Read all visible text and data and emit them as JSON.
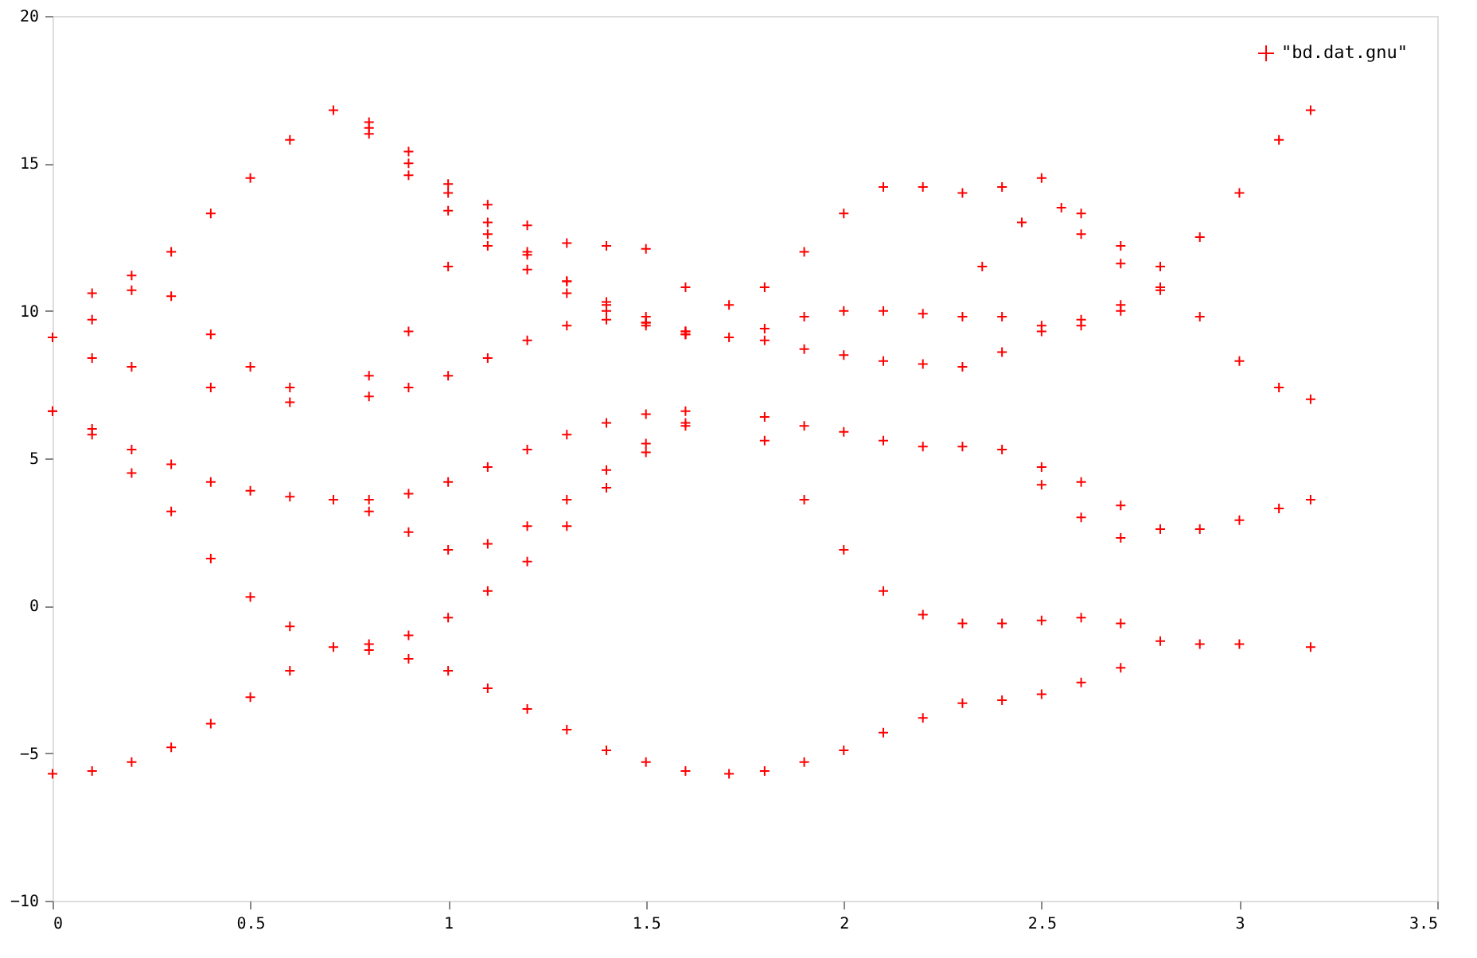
{
  "chart_data": {
    "type": "scatter",
    "xlim": [
      0,
      3.5
    ],
    "ylim": [
      -10,
      20
    ],
    "xticks": [
      0,
      0.5,
      1,
      1.5,
      2,
      2.5,
      3,
      3.5
    ],
    "yticks": [
      -10,
      -5,
      0,
      5,
      10,
      15,
      20
    ],
    "grid": false,
    "legend": "top right",
    "marker": "cross",
    "series": [
      {
        "name": "\"bd.dat.gnu\"",
        "color": "#ff0000",
        "x": [
          0,
          0.1,
          0.2,
          0.3,
          0.4,
          0.5,
          0.6,
          0.71,
          0.8,
          0.9,
          1.0,
          1.1,
          1.2,
          1.3,
          1.4,
          1.5,
          1.6,
          1.71,
          1.8,
          1.9,
          2.0,
          2.1,
          2.2,
          2.3,
          2.4,
          2.5,
          2.6,
          2.7,
          2.8,
          0,
          0.1,
          0.2,
          0.3,
          0.4,
          0.5,
          0.6,
          0.8,
          0.9,
          1.0,
          1.1,
          1.2,
          1.3,
          1.4,
          1.5,
          1.6,
          1.8,
          1.9,
          2.0,
          2.1,
          2.2,
          2.3,
          2.4,
          2.5,
          2.6,
          2.7,
          2.9,
          3.0,
          3.18,
          0,
          0.1,
          0.2,
          0.3,
          0.4,
          0.5,
          0.6,
          0.71,
          0.8,
          0.9,
          1.0,
          1.1,
          1.2,
          1.3,
          1.4,
          1.5,
          1.6,
          0.8,
          0.9,
          1.0,
          1.1,
          1.2,
          1.3,
          1.4,
          1.5,
          1.6,
          1.8,
          1.9,
          2.0,
          2.1,
          2.2,
          2.3,
          2.4,
          2.5,
          2.6,
          2.7,
          2.8,
          2.5,
          2.6,
          2.7,
          2.9,
          3.0,
          3.1,
          3.18,
          0,
          0.1,
          0.2,
          0.3,
          0.4,
          0.5,
          0.6,
          0.71,
          0.1,
          0.2,
          0.4,
          0.6,
          0.1,
          0.2,
          0.3,
          0.4,
          0.5,
          0.6,
          0.8,
          0.9,
          1.0,
          1.1,
          1.2,
          1.3,
          1.4,
          1.5,
          1.6,
          1.71,
          0.8,
          0.9,
          1.0,
          1.1,
          1.2,
          1.3,
          1.4,
          1.5,
          1.6,
          0.8,
          0.9,
          1.0,
          1.1,
          1.2,
          1.3,
          1.4,
          1.5,
          1.6,
          1.71,
          0.8,
          0.9,
          1.0,
          1.1,
          1.2,
          1.3,
          1.4,
          1.5,
          1.6,
          0.8,
          0.9,
          1.0,
          1.1,
          1.2,
          1.3,
          1.4,
          1.5,
          1.6,
          1.8,
          1.9,
          2.0,
          2.1,
          2.2,
          2.3,
          2.4,
          2.5,
          2.6,
          2.7,
          2.8,
          2.9,
          3.0,
          3.1,
          3.18,
          1.8,
          1.9,
          2.0,
          2.1,
          2.2,
          2.3,
          2.4,
          2.5,
          2.6,
          2.7,
          2.8,
          2.9,
          3.0,
          3.1,
          3.18,
          1.8,
          1.9,
          2.0,
          2.1,
          2.2,
          2.3,
          2.4,
          2.5,
          2.6,
          2.7,
          2.8,
          2.35,
          2.45,
          2.55,
          2.6,
          2.7
        ],
        "values": [
          -5.7,
          -5.6,
          -5.3,
          -4.8,
          -4.0,
          -3.1,
          -2.2,
          -1.4,
          -1.5,
          -1.8,
          -2.2,
          -2.8,
          -3.5,
          -4.2,
          -4.9,
          -5.3,
          -5.6,
          -5.7,
          -5.6,
          -5.3,
          -4.9,
          -4.3,
          -3.8,
          -3.3,
          -3.2,
          -3.0,
          -2.6,
          -2.1,
          -1.2,
          6.6,
          5.8,
          4.5,
          3.2,
          1.6,
          0.3,
          -0.7,
          -1.3,
          -1.0,
          -0.4,
          0.5,
          1.5,
          2.7,
          4.0,
          5.2,
          6.1,
          5.6,
          3.6,
          1.9,
          0.5,
          -0.3,
          -0.6,
          -0.6,
          -0.5,
          -0.4,
          -0.6,
          -1.3,
          -1.3,
          -1.4,
          6.6,
          6.0,
          5.3,
          4.8,
          4.2,
          3.9,
          3.7,
          3.6,
          3.2,
          2.5,
          1.9,
          2.1,
          2.7,
          3.6,
          4.6,
          5.5,
          6.2,
          3.6,
          3.8,
          4.2,
          4.7,
          5.3,
          5.8,
          6.2,
          6.5,
          6.6,
          6.4,
          6.1,
          5.9,
          5.6,
          5.4,
          5.4,
          5.3,
          4.7,
          4.2,
          3.4,
          2.6,
          4.1,
          3.0,
          2.3,
          2.6,
          2.9,
          3.3,
          3.6,
          9.1,
          9.7,
          10.7,
          12.0,
          13.3,
          14.5,
          15.8,
          16.8,
          8.4,
          8.1,
          7.4,
          6.9,
          10.6,
          11.2,
          10.5,
          9.2,
          8.1,
          7.4,
          7.8,
          9.3,
          11.5,
          12.6,
          12.0,
          11.0,
          10.2,
          9.6,
          9.2,
          9.1,
          7.1,
          7.4,
          7.8,
          8.4,
          9.0,
          9.5,
          9.7,
          9.6,
          9.3,
          16.2,
          15.0,
          14.0,
          13.6,
          12.9,
          12.3,
          12.2,
          12.1,
          10.8,
          10.2,
          16.0,
          14.6,
          13.4,
          12.2,
          11.4,
          10.6,
          10.0,
          9.5,
          9.2,
          16.4,
          15.4,
          14.3,
          13.0,
          11.9,
          11.0,
          10.3,
          9.8,
          9.3,
          10.8,
          12.0,
          13.3,
          14.2,
          14.2,
          14.0,
          14.2,
          14.5,
          13.3,
          12.2,
          11.5,
          12.5,
          14.0,
          15.8,
          16.8,
          9.4,
          9.8,
          10.0,
          10.0,
          9.9,
          9.8,
          9.8,
          9.5,
          9.5,
          10.0,
          10.8,
          9.8,
          8.3,
          7.4,
          7.0,
          9.0,
          8.7,
          8.5,
          8.3,
          8.2,
          8.1,
          8.6,
          9.3,
          9.7,
          10.2,
          10.7,
          11.5,
          13.0,
          13.5,
          12.6,
          11.6
        ]
      }
    ]
  }
}
